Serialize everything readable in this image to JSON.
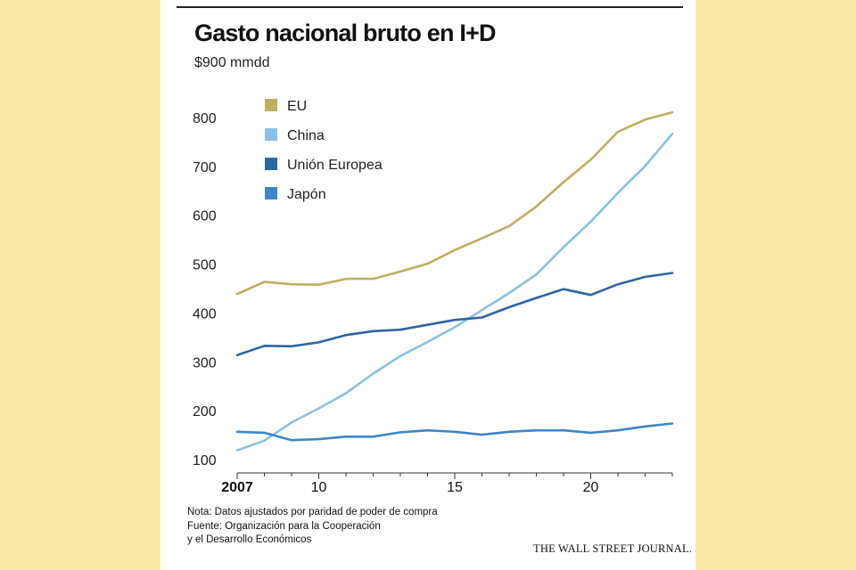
{
  "panel": {
    "title": "Gasto nacional bruto en I+D",
    "subtitle": "$900 mmdd",
    "notes": [
      "Nota: Datos ajustados por paridad de poder de compra",
      "Fuente: Organización para la Cooperación",
      "y el Desarrollo Económicos"
    ],
    "source_brand": "THE WALL STREET JOURNAL."
  },
  "chart_data": {
    "type": "line",
    "title": "Gasto nacional bruto en I+D",
    "subtitle": "$900 mmdd",
    "xlabel": "",
    "ylabel": "",
    "x": [
      2007,
      2008,
      2009,
      2010,
      2011,
      2012,
      2013,
      2014,
      2015,
      2016,
      2017,
      2018,
      2019,
      2020,
      2021,
      2022,
      2023
    ],
    "xlim": [
      2007,
      2023
    ],
    "ylim": [
      100,
      830
    ],
    "x_ticks": [
      2007,
      2010,
      2015,
      2020
    ],
    "x_tick_labels": [
      "2007",
      "10",
      "15",
      "20"
    ],
    "y_ticks": [
      100,
      200,
      300,
      400,
      500,
      600,
      700,
      800
    ],
    "y_tick_labels": [
      "100",
      "200",
      "300",
      "400",
      "500",
      "600",
      "700",
      "800"
    ],
    "grid": false,
    "legend_position": "top-left",
    "series": [
      {
        "name": "EU",
        "color": "#bdb060",
        "values": [
          437,
          462,
          457,
          456,
          468,
          468,
          483,
          499,
          527,
          551,
          576,
          616,
          666,
          712,
          769,
          794,
          809
        ]
      },
      {
        "name": "China",
        "color": "#8cc0e3",
        "values": [
          117,
          137,
          174,
          203,
          234,
          274,
          310,
          339,
          369,
          404,
          439,
          477,
          533,
          585,
          644,
          699,
          765
        ]
      },
      {
        "name": "Unión Europea",
        "color": "#2c66a3",
        "values": [
          312,
          331,
          330,
          338,
          353,
          361,
          364,
          374,
          384,
          389,
          410,
          429,
          447,
          435,
          457,
          472,
          480
        ]
      },
      {
        "name": "Japón",
        "color": "#3b87c7",
        "values": [
          155,
          153,
          138,
          140,
          145,
          145,
          154,
          158,
          155,
          149,
          155,
          158,
          158,
          153,
          158,
          166,
          172
        ]
      }
    ]
  }
}
